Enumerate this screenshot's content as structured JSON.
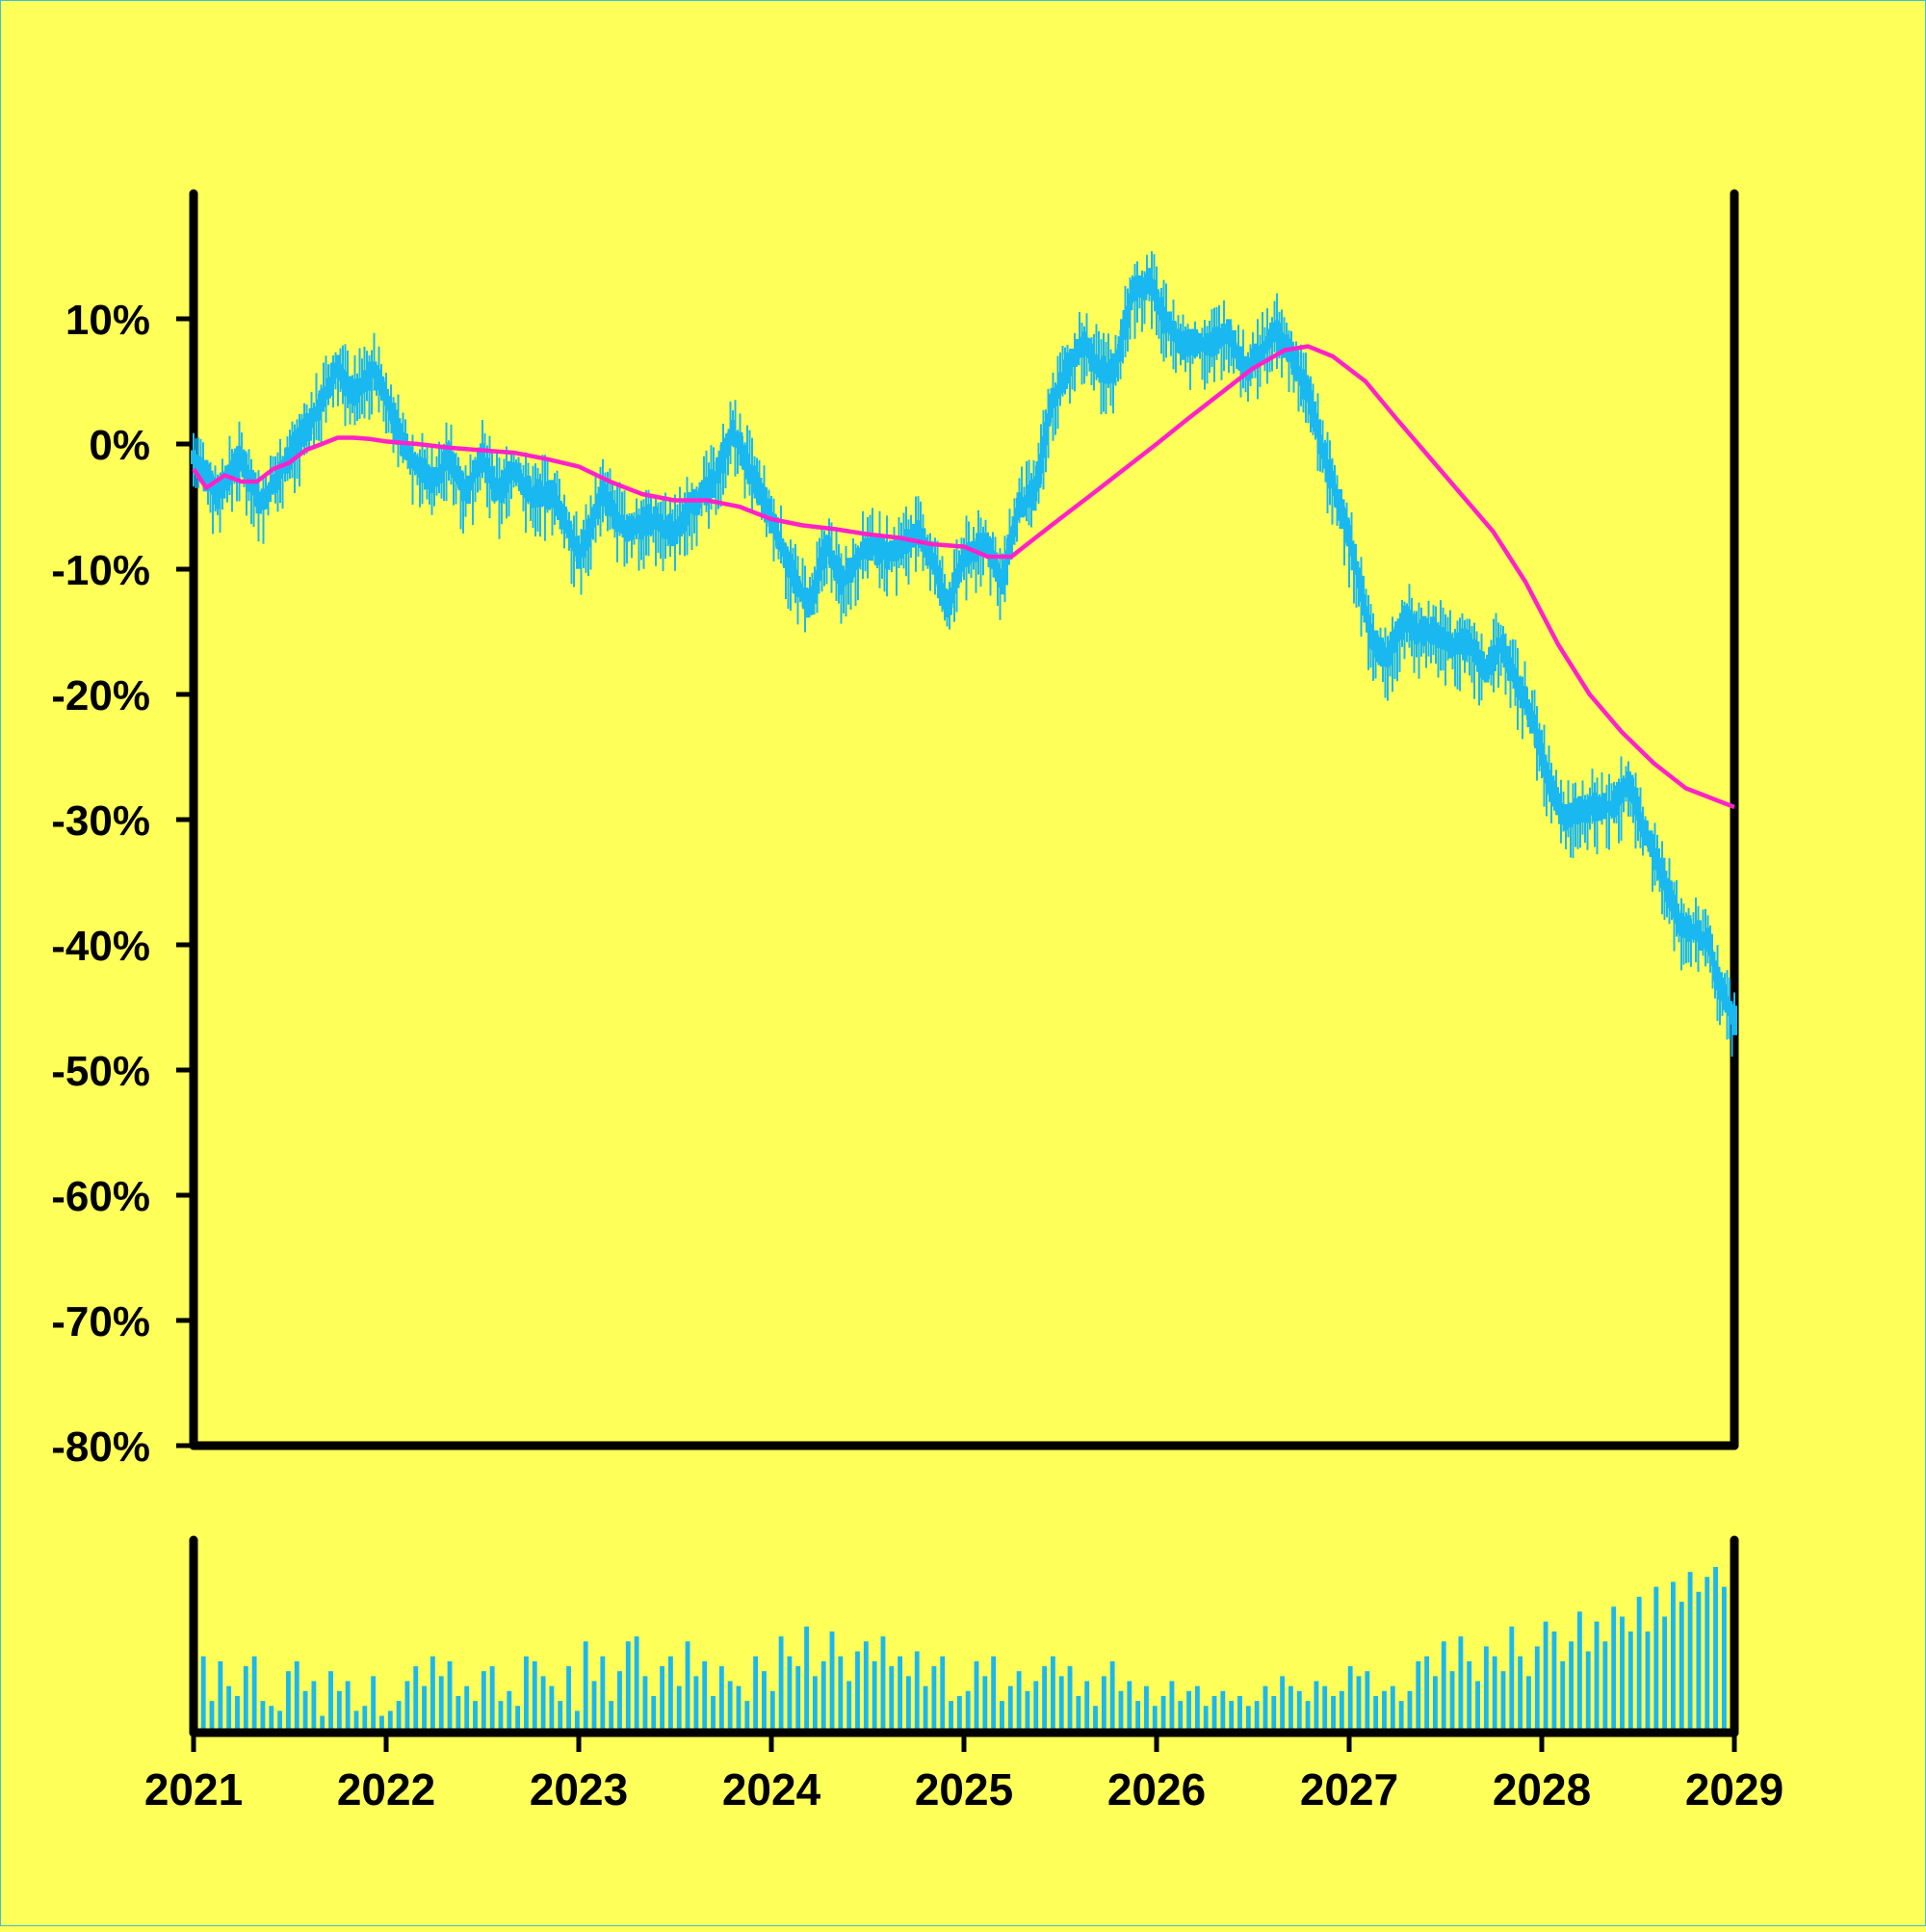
{
  "chart_data": {
    "type": "line",
    "title": "",
    "xlabel": "",
    "ylabel": "",
    "x_tick_labels": [
      "2021",
      "2022",
      "2023",
      "2024",
      "2025",
      "2026",
      "2027",
      "2028",
      "2029"
    ],
    "y_tick_labels": [
      "10%",
      "0%",
      "-10%",
      "-20%",
      "-30%",
      "-40%",
      "-50%",
      "-60%",
      "-70%",
      "-80%"
    ],
    "xlim": [
      "2021-01-01",
      "2029-01-01"
    ],
    "ylim": [
      -80,
      20
    ],
    "grid": false,
    "legend": "none",
    "series": [
      {
        "kind": "price_candles",
        "color": "#19b8f0",
        "points": [
          [
            "2021-01-01",
            -1
          ],
          [
            "2021-02-15",
            -4
          ],
          [
            "2021-04-01",
            -1
          ],
          [
            "2021-05-10",
            -5
          ],
          [
            "2021-06-15",
            -2
          ],
          [
            "2021-07-15",
            0
          ],
          [
            "2021-08-15",
            2
          ],
          [
            "2021-10-01",
            6
          ],
          [
            "2021-11-01",
            4
          ],
          [
            "2021-12-10",
            6
          ],
          [
            "2022-01-15",
            2
          ],
          [
            "2022-02-15",
            -1
          ],
          [
            "2022-04-01",
            -3
          ],
          [
            "2022-05-01",
            -1
          ],
          [
            "2022-06-01",
            -4
          ],
          [
            "2022-07-01",
            -1
          ],
          [
            "2022-08-01",
            -4
          ],
          [
            "2022-09-01",
            -2
          ],
          [
            "2022-10-01",
            -4
          ],
          [
            "2022-11-15",
            -4
          ],
          [
            "2023-01-01",
            -9
          ],
          [
            "2023-02-15",
            -4
          ],
          [
            "2023-04-01",
            -7
          ],
          [
            "2023-05-15",
            -6
          ],
          [
            "2023-07-01",
            -7
          ],
          [
            "2023-08-01",
            -5
          ],
          [
            "2023-09-15",
            -3
          ],
          [
            "2023-10-20",
            1
          ],
          [
            "2023-12-01",
            -3
          ],
          [
            "2024-01-01",
            -6
          ],
          [
            "2024-02-15",
            -11
          ],
          [
            "2024-03-15",
            -13
          ],
          [
            "2024-04-15",
            -8
          ],
          [
            "2024-05-15",
            -11
          ],
          [
            "2024-07-01",
            -8
          ],
          [
            "2024-08-15",
            -9
          ],
          [
            "2024-10-01",
            -7
          ],
          [
            "2024-11-01",
            -9
          ],
          [
            "2024-12-01",
            -13
          ],
          [
            "2025-01-01",
            -9
          ],
          [
            "2025-02-15",
            -8
          ],
          [
            "2025-03-15",
            -11
          ],
          [
            "2025-04-15",
            -5
          ],
          [
            "2025-05-15",
            -4
          ],
          [
            "2025-06-15",
            3
          ],
          [
            "2025-07-15",
            6
          ],
          [
            "2025-08-15",
            8
          ],
          [
            "2025-09-15",
            6
          ],
          [
            "2025-10-15",
            6
          ],
          [
            "2025-11-15",
            12
          ],
          [
            "2025-12-20",
            13
          ],
          [
            "2026-01-15",
            10
          ],
          [
            "2026-02-15",
            8
          ],
          [
            "2026-04-15",
            8
          ],
          [
            "2026-05-15",
            9
          ],
          [
            "2026-06-15",
            6
          ],
          [
            "2026-07-15",
            7
          ],
          [
            "2026-08-15",
            9
          ],
          [
            "2026-09-15",
            7
          ],
          [
            "2026-10-15",
            4
          ],
          [
            "2026-11-15",
            -1
          ],
          [
            "2026-12-15",
            -5
          ],
          [
            "2027-01-15",
            -10
          ],
          [
            "2027-02-15",
            -16
          ],
          [
            "2027-03-15",
            -17
          ],
          [
            "2027-04-15",
            -14
          ],
          [
            "2027-05-15",
            -15
          ],
          [
            "2027-06-15",
            -15
          ],
          [
            "2027-07-15",
            -16
          ],
          [
            "2027-08-15",
            -16
          ],
          [
            "2027-09-15",
            -18
          ],
          [
            "2027-10-15",
            -16
          ],
          [
            "2027-11-15",
            -19
          ],
          [
            "2027-12-15",
            -22
          ],
          [
            "2028-01-15",
            -27
          ],
          [
            "2028-02-15",
            -30
          ],
          [
            "2028-03-15",
            -29
          ],
          [
            "2028-04-15",
            -29
          ],
          [
            "2028-05-15",
            -29
          ],
          [
            "2028-06-15",
            -27
          ],
          [
            "2028-07-15",
            -31
          ],
          [
            "2028-08-15",
            -34
          ],
          [
            "2028-09-15",
            -38
          ],
          [
            "2028-10-15",
            -39
          ],
          [
            "2028-11-15",
            -40
          ],
          [
            "2028-12-01",
            -43
          ],
          [
            "2029-01-01",
            -46
          ]
        ]
      },
      {
        "kind": "moving_average",
        "color": "#ff22c8",
        "points": [
          [
            "2021-01-01",
            -2
          ],
          [
            "2021-01-25",
            -3.5
          ],
          [
            "2021-03-01",
            -2.5
          ],
          [
            "2021-04-01",
            -3
          ],
          [
            "2021-05-01",
            -3
          ],
          [
            "2021-06-01",
            -2
          ],
          [
            "2021-07-01",
            -1.5
          ],
          [
            "2021-08-01",
            -0.5
          ],
          [
            "2021-09-01",
            0
          ],
          [
            "2021-10-01",
            0.5
          ],
          [
            "2021-11-01",
            0.5
          ],
          [
            "2021-12-01",
            0.4
          ],
          [
            "2022-01-01",
            0.2
          ],
          [
            "2022-03-01",
            0
          ],
          [
            "2022-05-01",
            -0.3
          ],
          [
            "2022-07-01",
            -0.5
          ],
          [
            "2022-09-01",
            -0.7
          ],
          [
            "2022-11-01",
            -1.2
          ],
          [
            "2023-01-01",
            -1.8
          ],
          [
            "2023-03-01",
            -3
          ],
          [
            "2023-05-01",
            -4
          ],
          [
            "2023-07-01",
            -4.5
          ],
          [
            "2023-09-01",
            -4.5
          ],
          [
            "2023-11-01",
            -5
          ],
          [
            "2024-01-01",
            -6
          ],
          [
            "2024-03-01",
            -6.5
          ],
          [
            "2024-05-01",
            -6.8
          ],
          [
            "2024-07-01",
            -7.2
          ],
          [
            "2024-09-01",
            -7.5
          ],
          [
            "2024-11-01",
            -8
          ],
          [
            "2025-01-01",
            -8.2
          ],
          [
            "2025-02-15",
            -9
          ],
          [
            "2025-04-01",
            -9
          ],
          [
            "2025-05-01",
            -8
          ],
          [
            "2025-07-01",
            -6
          ],
          [
            "2025-09-01",
            -4
          ],
          [
            "2025-11-01",
            -2
          ],
          [
            "2026-01-01",
            0
          ],
          [
            "2026-03-01",
            2
          ],
          [
            "2026-05-01",
            4
          ],
          [
            "2026-07-01",
            6
          ],
          [
            "2026-09-01",
            7.5
          ],
          [
            "2026-10-15",
            7.8
          ],
          [
            "2026-12-01",
            7
          ],
          [
            "2027-02-01",
            5
          ],
          [
            "2027-04-01",
            2
          ],
          [
            "2027-06-01",
            -1
          ],
          [
            "2027-08-01",
            -4
          ],
          [
            "2027-10-01",
            -7
          ],
          [
            "2027-12-01",
            -11
          ],
          [
            "2028-02-01",
            -16
          ],
          [
            "2028-04-01",
            -20
          ],
          [
            "2028-06-01",
            -23
          ],
          [
            "2028-08-01",
            -25.5
          ],
          [
            "2028-10-01",
            -27.5
          ],
          [
            "2029-01-01",
            -29
          ]
        ]
      }
    ],
    "volume_panel": {
      "color": "#19b8f0",
      "values": [
        30,
        12,
        28,
        18,
        14,
        26,
        30,
        12,
        10,
        8,
        24,
        28,
        16,
        20,
        6,
        24,
        16,
        20,
        8,
        10,
        22,
        6,
        8,
        12,
        20,
        26,
        18,
        30,
        22,
        28,
        14,
        18,
        12,
        24,
        26,
        12,
        16,
        10,
        30,
        28,
        22,
        18,
        12,
        26,
        8,
        36,
        20,
        30,
        12,
        24,
        36,
        38,
        22,
        14,
        26,
        30,
        18,
        36,
        22,
        28,
        14,
        26,
        20,
        18,
        12,
        30,
        24,
        16,
        38,
        30,
        26,
        42,
        22,
        28,
        40,
        30,
        20,
        32,
        36,
        28,
        38,
        26,
        30,
        22,
        32,
        18,
        26,
        30,
        12,
        14,
        16,
        28,
        22,
        30,
        12,
        18,
        24,
        16,
        20,
        26,
        30,
        22,
        26,
        14,
        20,
        10,
        22,
        28,
        16,
        20,
        12,
        18,
        10,
        14,
        20,
        12,
        16,
        18,
        10,
        14,
        16,
        12,
        14,
        10,
        12,
        18,
        14,
        22,
        18,
        16,
        12,
        20,
        18,
        14,
        16,
        26,
        22,
        24,
        14,
        16,
        18,
        12,
        16,
        28,
        30,
        22,
        36,
        24,
        38,
        28,
        20,
        34,
        30,
        24,
        42,
        30,
        22,
        34,
        44,
        40,
        28,
        36,
        48,
        32,
        44,
        36,
        50,
        46,
        40,
        54,
        40,
        58,
        46,
        60,
        52,
        64,
        56,
        62,
        66,
        58
      ]
    }
  }
}
